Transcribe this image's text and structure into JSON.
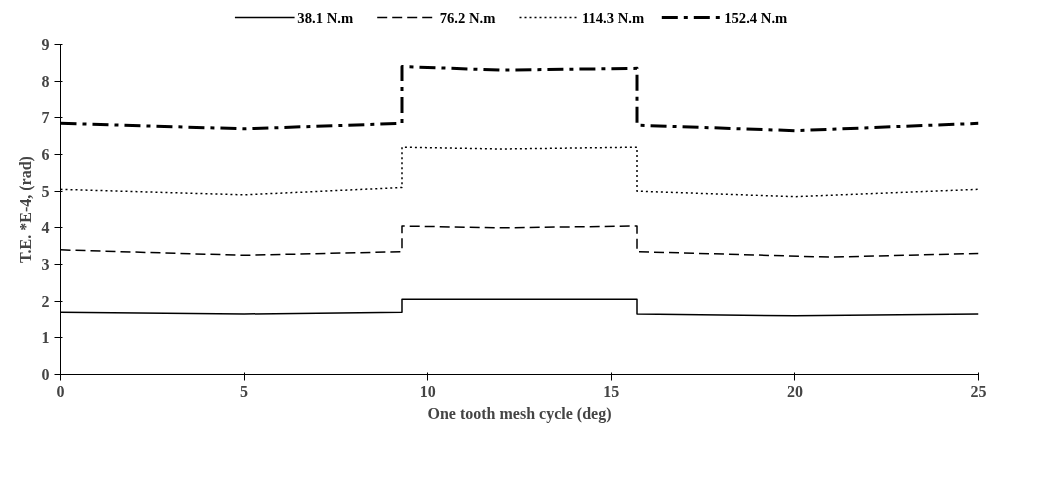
{
  "chart_data": {
    "type": "line",
    "xlabel": "One tooth mesh cycle (deg)",
    "ylabel": "T.E. *E-4, (rad)",
    "xlim": [
      0,
      25
    ],
    "ylim": [
      0,
      9
    ],
    "xticks": [
      0,
      5,
      10,
      15,
      20,
      25
    ],
    "yticks": [
      0,
      1,
      2,
      3,
      4,
      5,
      6,
      7,
      8,
      9
    ],
    "legend": "top",
    "grid": false,
    "marker": "none",
    "series": [
      {
        "name": "38.1 N.m",
        "color": "#000000",
        "line_style": "solid",
        "x": [
          0,
          5,
          9.3,
          9.3,
          12,
          15.7,
          15.7,
          20,
          25
        ],
        "values": [
          1.7,
          1.65,
          1.7,
          2.05,
          2.05,
          2.05,
          1.65,
          1.6,
          1.65
        ]
      },
      {
        "name": "76.2 N.m",
        "color": "#000000",
        "line_style": "dashed",
        "x": [
          0,
          5,
          9.3,
          9.3,
          12,
          15.7,
          15.7,
          21,
          25
        ],
        "values": [
          3.4,
          3.25,
          3.35,
          4.05,
          4.0,
          4.05,
          3.35,
          3.2,
          3.3
        ]
      },
      {
        "name": "114.3 N.m",
        "color": "#000000",
        "line_style": "dotted",
        "x": [
          0,
          5,
          9.3,
          9.3,
          12,
          15.7,
          15.7,
          20,
          25
        ],
        "values": [
          5.05,
          4.9,
          5.1,
          6.2,
          6.15,
          6.2,
          5.0,
          4.85,
          5.05
        ]
      },
      {
        "name": "152.4 N.m",
        "color": "#000000",
        "line_style": "dashdot",
        "x": [
          0,
          5,
          9.3,
          9.3,
          12,
          15.7,
          15.7,
          20,
          25
        ],
        "values": [
          6.85,
          6.7,
          6.85,
          8.4,
          8.3,
          8.35,
          6.8,
          6.65,
          6.85
        ]
      }
    ]
  }
}
